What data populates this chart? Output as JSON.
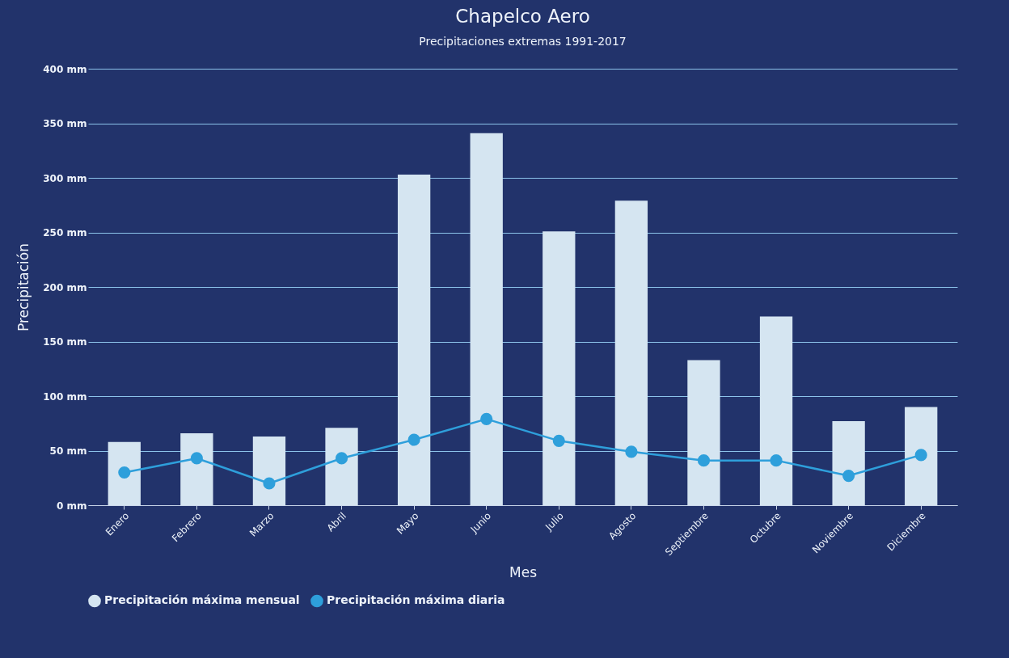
{
  "chart_data": {
    "type": "bar",
    "title": "Chapelco Aero",
    "subtitle": "Precipitaciones extremas 1991-2017",
    "xlabel": "Mes",
    "ylabel": "Precipitación",
    "categories": [
      "Enero",
      "Febrero",
      "Marzo",
      "Abril",
      "Mayo",
      "Junio",
      "Julio",
      "Agosto",
      "Septiembre",
      "Octubre",
      "Noviembre",
      "Diciembre"
    ],
    "series": [
      {
        "name": "Precipitación máxima mensual",
        "color": "#d5e5f1",
        "values": [
          58,
          66,
          63,
          71,
          303,
          341,
          251,
          279,
          133,
          173,
          77,
          90
        ]
      },
      {
        "name": "Precipitación máxima diaria",
        "type": "line",
        "color": "#2e9fdb",
        "values": [
          30,
          43,
          20,
          43,
          60,
          79,
          59,
          49,
          41,
          41,
          27,
          46
        ]
      }
    ],
    "ylim": [
      0,
      400
    ],
    "yticks": [
      {
        "value": 0,
        "label": "0 mm"
      },
      {
        "value": 50,
        "label": "50 mm"
      },
      {
        "value": 100,
        "label": "100 mm"
      },
      {
        "value": 150,
        "label": "150 mm"
      },
      {
        "value": 200,
        "label": "200 mm"
      },
      {
        "value": 250,
        "label": "250 mm"
      },
      {
        "value": 300,
        "label": "300 mm"
      },
      {
        "value": 350,
        "label": "350 mm"
      },
      {
        "value": 400,
        "label": "400 mm"
      }
    ],
    "grid": "y",
    "legend": "bottom",
    "marker": "circle",
    "line_style": "solid"
  }
}
